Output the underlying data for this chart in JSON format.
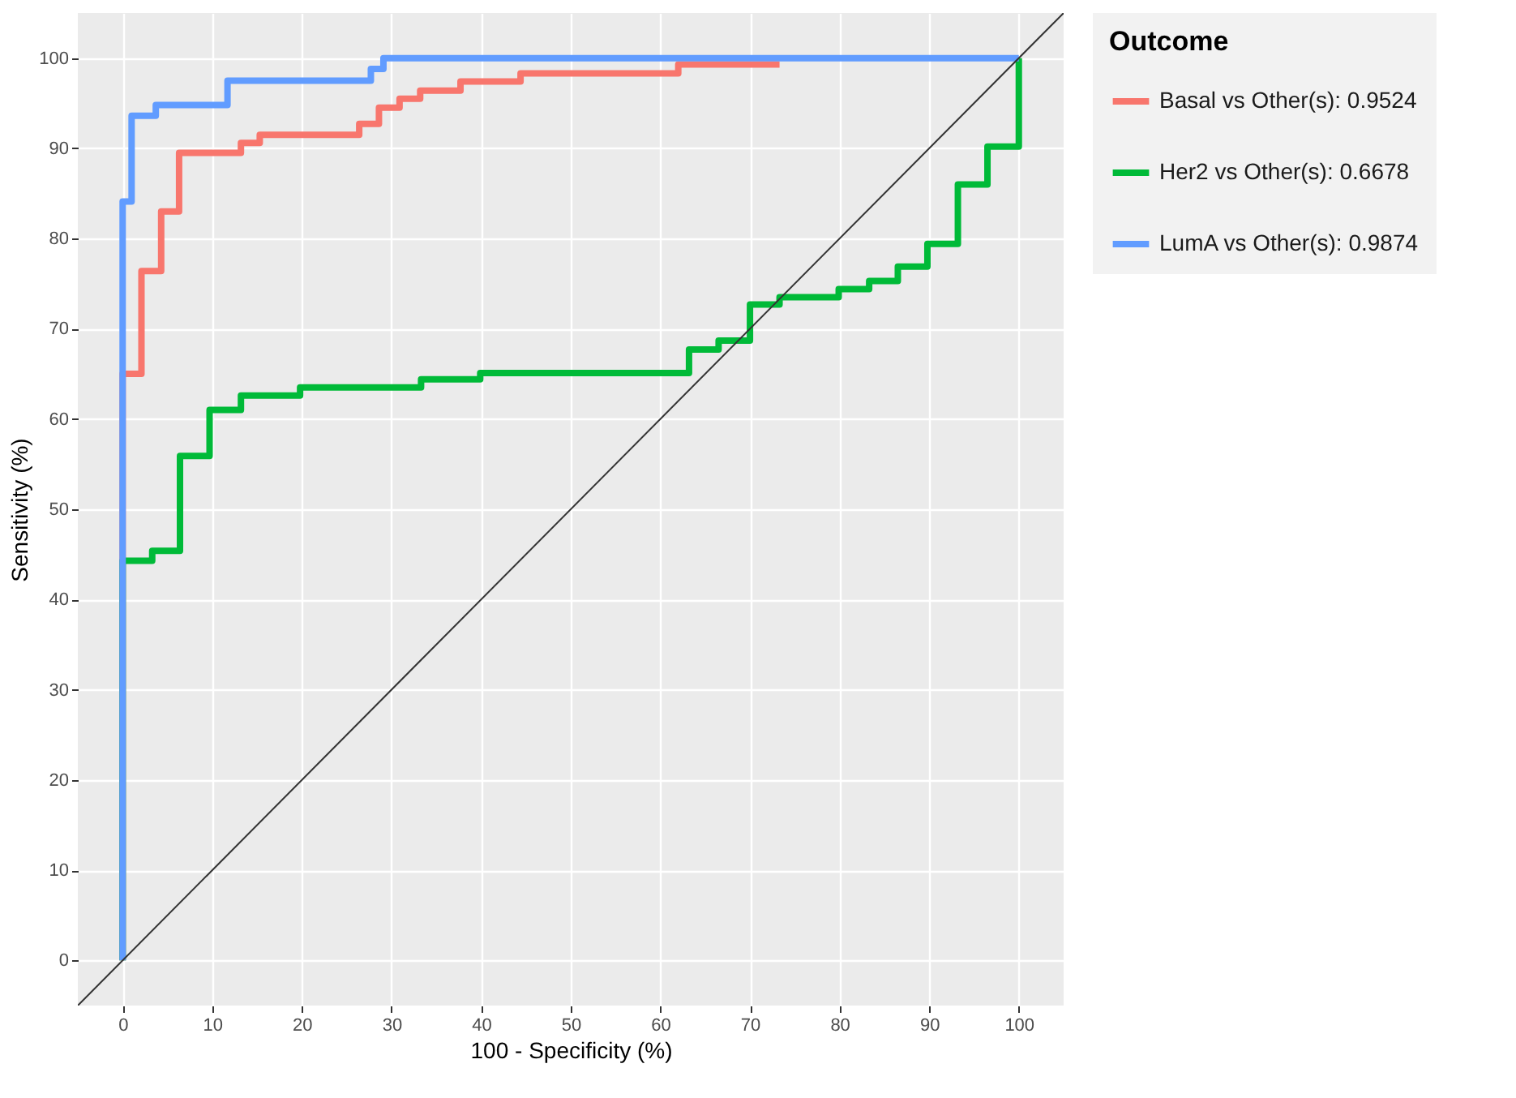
{
  "chart_data": {
    "type": "step",
    "xlabel": "100 - Specificity (%)",
    "ylabel": "Sensitivity (%)",
    "legend_title": "Outcome",
    "legend": "right",
    "grid": true,
    "xlim": [
      -5,
      105
    ],
    "ylim": [
      -5,
      105
    ],
    "xticks": [
      0,
      10,
      20,
      30,
      40,
      50,
      60,
      70,
      80,
      90,
      100
    ],
    "yticks": [
      0,
      10,
      20,
      30,
      40,
      50,
      60,
      70,
      80,
      90,
      100
    ],
    "series": [
      {
        "name": "Basal vs Other(s): 0.9524",
        "color": "#f8766d",
        "x": [
          0,
          0,
          2.1,
          4.3,
          6.3,
          13.2,
          15.3,
          26.4,
          28.6,
          30.9,
          33.2,
          37.7,
          44.4,
          62.0,
          73.3
        ],
        "values": [
          0,
          65.0,
          76.4,
          83.0,
          89.5,
          90.6,
          91.5,
          92.7,
          94.5,
          95.5,
          96.4,
          97.4,
          98.3,
          99.3,
          99.3
        ]
      },
      {
        "name": "Her2 vs Other(s): 0.6678",
        "color": "#00ba38",
        "x": [
          0,
          0,
          3.3,
          6.4,
          9.7,
          13.2,
          19.8,
          33.3,
          39.9,
          63.2,
          66.5,
          70.0,
          73.3,
          79.9,
          83.3,
          86.5,
          89.8,
          93.2,
          96.5,
          100
        ],
        "values": [
          0,
          44.3,
          45.4,
          55.9,
          61.0,
          62.6,
          63.5,
          64.4,
          65.1,
          67.7,
          68.7,
          72.7,
          73.5,
          74.4,
          75.3,
          76.9,
          79.4,
          86.0,
          90.2,
          100
        ]
      },
      {
        "name": "LumA vs Other(s): 0.9874",
        "color": "#619cff",
        "x": [
          0,
          0,
          1.0,
          3.7,
          11.7,
          27.7,
          29.1,
          100
        ],
        "values": [
          0,
          84.1,
          93.6,
          94.8,
          97.5,
          98.8,
          100,
          100
        ]
      },
      {
        "type": "line",
        "color": "#333333",
        "x": [
          -5,
          105
        ],
        "values": [
          -5,
          105
        ]
      }
    ]
  }
}
